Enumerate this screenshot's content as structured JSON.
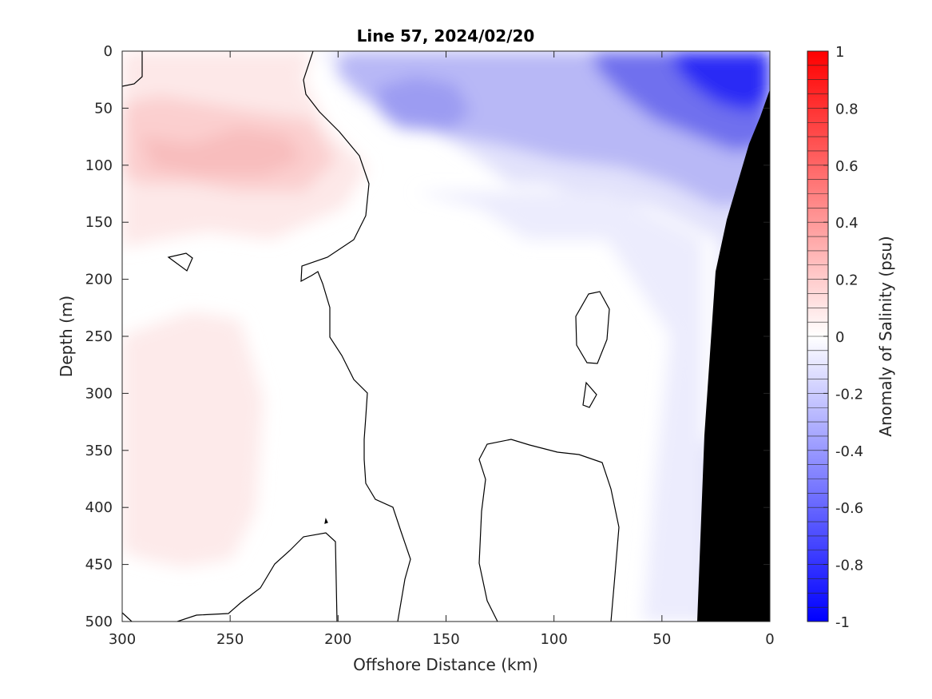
{
  "chart_data": {
    "type": "contour",
    "title": "Line 57, 2024/02/20",
    "xlabel": "Offshore Distance (km)",
    "ylabel": "Depth (m)",
    "x_ticks": [
      300,
      250,
      200,
      150,
      100,
      50,
      0
    ],
    "y_ticks": [
      0,
      50,
      100,
      150,
      200,
      250,
      300,
      350,
      400,
      450,
      500
    ],
    "xlim": [
      300,
      0
    ],
    "ylim": [
      0,
      500
    ],
    "y_reversed": true,
    "colorbar": {
      "label": "Anomaly of Salinity (psu)",
      "ticks": [
        1,
        0.8,
        0.6,
        0.4,
        0.2,
        0,
        -0.2,
        -0.4,
        -0.6,
        -0.8,
        -1
      ],
      "tick_labels": [
        "1",
        "0.8",
        "0.6",
        "0.4",
        "0.2",
        "0",
        "-0.2",
        "-0.4",
        "-0.6",
        "-0.8",
        "-1"
      ],
      "range": [
        -1,
        1
      ],
      "levels": 40,
      "colors": {
        "low": "#0000ff",
        "mid": "#ffffff",
        "high": "#ff0000"
      }
    },
    "fields": [
      {
        "name": "surface-fresh-core",
        "value": -0.8,
        "x_range": [
          30,
          0
        ],
        "y_range": [
          0,
          60
        ]
      },
      {
        "name": "upper-fresh-layer",
        "value": -0.3,
        "x_range": [
          190,
          0
        ],
        "y_range": [
          0,
          140
        ]
      },
      {
        "name": "subsurface-salty-lens",
        "value": 0.15,
        "x_range": [
          300,
          200
        ],
        "y_range": [
          50,
          120
        ]
      },
      {
        "name": "deep-salty-lens",
        "value": 0.05,
        "x_range": [
          300,
          240
        ],
        "y_range": [
          240,
          450
        ]
      }
    ],
    "zero_contour": "black, 1px",
    "bathymetry": {
      "color": "#000000"
    }
  }
}
